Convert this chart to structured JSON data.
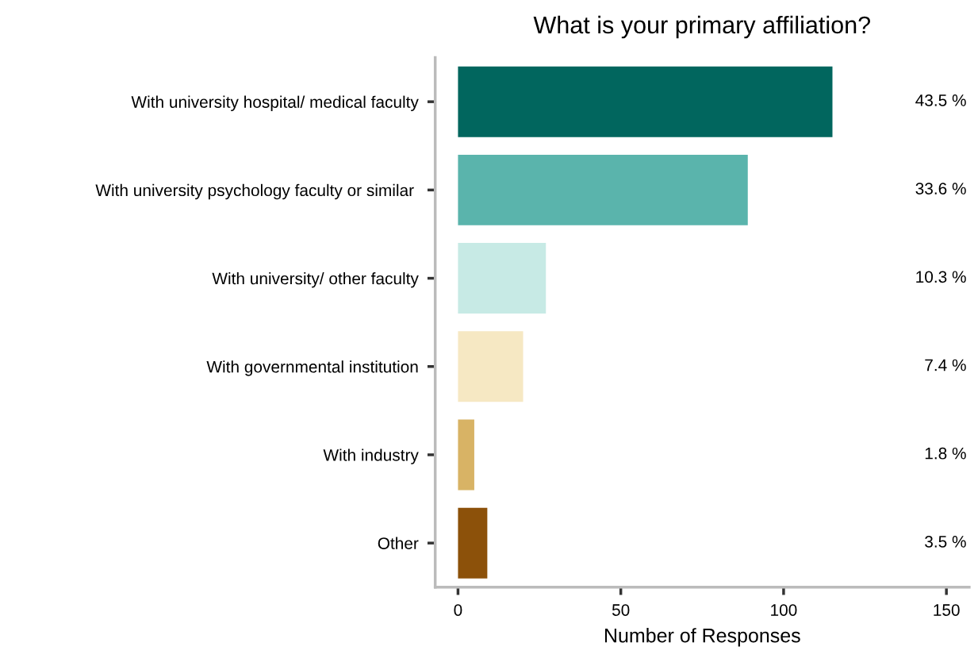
{
  "chart_data": {
    "type": "bar",
    "orientation": "horizontal",
    "title": "What is your primary affiliation?",
    "xlabel": "Number of Responses",
    "categories": [
      "With university hospital/ medical faculty",
      "With university psychology faculty or similar ",
      "With university/ other faculty",
      "With governmental institution",
      "With industry",
      "Other"
    ],
    "values": [
      115,
      89,
      27,
      20,
      5,
      9
    ],
    "colors": [
      "#01665e",
      "#5ab4ac",
      "#c7eae5",
      "#f6e8c3",
      "#d8b365",
      "#8c510a"
    ],
    "annotations": [
      "43.5 %",
      "33.6 %",
      "10.3 %",
      "7.4 %",
      "1.8 %",
      "3.5 %"
    ],
    "xlim": [
      -7,
      157
    ],
    "xticks": [
      0,
      50,
      100,
      150
    ],
    "grid": false,
    "legend": false
  }
}
